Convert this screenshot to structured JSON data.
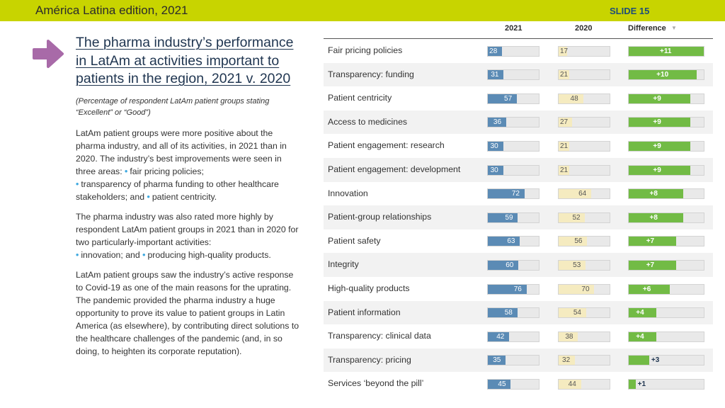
{
  "header": {
    "title": "América Latina edition, 2021",
    "slide_label": "SLIDE 15"
  },
  "colors": {
    "header_bar": "#c8d400",
    "arrow": "#a86aa8",
    "bar_2021": "#5b8bb5",
    "bar_2020": "#f5ebc0",
    "bar_difference": "#72bb45",
    "bullet": "#3fa9e0"
  },
  "icons": {
    "arrow": "right-arrow-icon",
    "sort": "sort-down-icon"
  },
  "left": {
    "title": "The pharma industry’s performance in LatAm at activities important to patients in the region, 2021 v. 2020",
    "subtitle": "(Percentage of respondent LatAm patient groups stating “Excellent” or “Good”)",
    "p1_text": "LatAm patient groups were more positive about the pharma industry, and all of its activities, in 2021 than in 2020. The industry’s best improvements were seen in three areas:",
    "p1_b1": "fair pricing policies;",
    "p1_b2": "transparency of pharma funding to other healthcare stakeholders; and",
    "p1_b3": "patient centricity.",
    "p2_text": "The pharma industry was also rated more highly by respondent LatAm patient groups in 2021 than in 2020 for two particularly-important activities:",
    "p2_b1": "innovation; and",
    "p2_b2": "producing high-quality products.",
    "p3_text": "LatAm patient groups saw the industry’s active response to Covid-19 as one of the main reasons for the uprating. The pandemic provided the pharma industry a huge opportunity to prove its value to patient groups in Latin America (as elsewhere), by contributing direct solutions to the healthcare challenges of the pandemic (and, in so doing, to heighten its corporate reputation)."
  },
  "chart_data": {
    "type": "bar",
    "columns": [
      "2021",
      "2020",
      "Difference"
    ],
    "sort": "Difference descending",
    "categories": [
      "Fair pricing policies",
      "Transparency: funding",
      "Patient centricity",
      "Access to medicines",
      "Patient engagement: research",
      "Patient engagement: development",
      "Innovation",
      "Patient-group relationships",
      "Patient safety",
      "Integrity",
      "High-quality products",
      "Patient information",
      "Transparency: clinical data",
      "Transparency: pricing",
      "Services ‘beyond the pill’"
    ],
    "series": [
      {
        "name": "2021",
        "values": [
          28,
          31,
          57,
          36,
          30,
          30,
          72,
          59,
          63,
          60,
          76,
          58,
          42,
          35,
          45
        ]
      },
      {
        "name": "2020",
        "values": [
          17,
          21,
          48,
          27,
          21,
          21,
          64,
          52,
          56,
          53,
          70,
          54,
          38,
          32,
          44
        ]
      },
      {
        "name": "Difference",
        "values": [
          11,
          10,
          9,
          9,
          9,
          9,
          8,
          8,
          7,
          7,
          6,
          4,
          4,
          3,
          1
        ],
        "labels": [
          "+11",
          "+10",
          "+9",
          "+9",
          "+9",
          "+9",
          "+8",
          "+8",
          "+7",
          "+7",
          "+6",
          "+4",
          "+4",
          "+3",
          "+1"
        ]
      }
    ],
    "value_range_percent": [
      0,
      100
    ],
    "difference_range": [
      0,
      11
    ]
  }
}
